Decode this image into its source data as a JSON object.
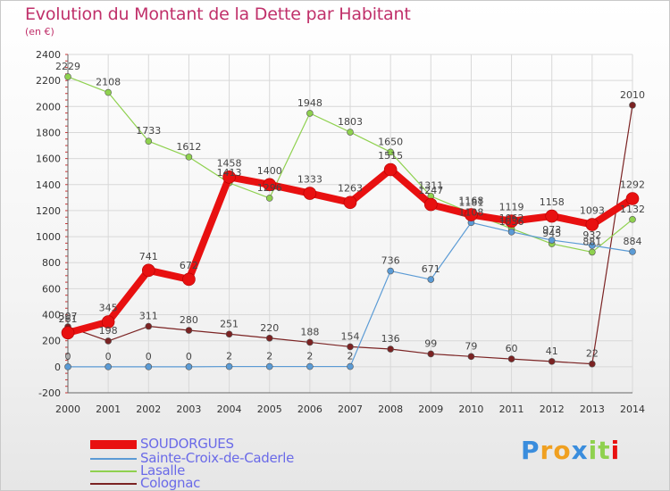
{
  "header": {
    "title": "Evolution du Montant de la Dette par Habitant",
    "unit": "(en €)"
  },
  "colors": {
    "title": "#c0306a",
    "legend_text": "#6a6ae8",
    "grid": "#d8d8d8"
  },
  "chart_data": {
    "type": "line",
    "title": "Evolution du Montant de la Dette par Habitant",
    "subtitle": "(en €)",
    "x": [
      2000,
      2001,
      2002,
      2003,
      2004,
      2005,
      2006,
      2007,
      2008,
      2009,
      2010,
      2011,
      2012,
      2013,
      2014
    ],
    "ylim": [
      -200,
      2400
    ],
    "yticks": [
      -200,
      0,
      200,
      400,
      600,
      800,
      1000,
      1200,
      1400,
      1600,
      1800,
      2000,
      2200,
      2400
    ],
    "grid": true,
    "legend_position": "bottom",
    "series": [
      {
        "name": "SOUDORGUES",
        "color": "#e81010",
        "line_width": 8,
        "values": [
          261,
          345,
          741,
          672,
          1458,
          1400,
          1333,
          1263,
          1515,
          1247,
          1168,
          1119,
          1158,
          1093,
          1292
        ],
        "labels": [
          "261",
          "345",
          "741",
          "672",
          "1458",
          "1400",
          "1333",
          "1263",
          "1515",
          "1247",
          "1168",
          "1119",
          "1158",
          "1093",
          "1292"
        ]
      },
      {
        "name": "Sainte-Croix-de-Caderle",
        "color": "#5b9bd5",
        "line_width": 1.2,
        "values": [
          0,
          0,
          0,
          0,
          2,
          2,
          2,
          2,
          736,
          671,
          1108,
          1036,
          973,
          932,
          884
        ],
        "labels": [
          "0",
          "0",
          "0",
          "0",
          "2",
          "2",
          "2",
          "2",
          "736",
          "671",
          "1108",
          "1036",
          "973",
          "932",
          "884"
        ]
      },
      {
        "name": "Lasalle",
        "color": "#8fd14f",
        "line_width": 1.2,
        "values": [
          2229,
          2108,
          1733,
          1612,
          1413,
          1296,
          1948,
          1803,
          1650,
          1311,
          1181,
          1062,
          945,
          881,
          1132
        ],
        "labels": [
          "2229",
          "2108",
          "1733",
          "1612",
          "1413",
          "1296",
          "1948",
          "1803",
          "1650",
          "1311",
          "1181",
          "1062",
          "945",
          "881",
          "1132"
        ]
      },
      {
        "name": "Colognac",
        "color": "#7b2323",
        "line_width": 1.2,
        "values": [
          307,
          198,
          311,
          280,
          251,
          220,
          188,
          154,
          136,
          99,
          79,
          60,
          41,
          22,
          2010
        ],
        "labels": [
          "307",
          "198",
          "311",
          "280",
          "251",
          "220",
          "188",
          "154",
          "136",
          "99",
          "79",
          "60",
          "41",
          "22",
          "2010"
        ]
      }
    ]
  },
  "legend": {
    "items": [
      {
        "label": "SOUDORGUES",
        "color": "#e81010"
      },
      {
        "label": "Sainte-Croix-de-Caderle",
        "color": "#5b9bd5"
      },
      {
        "label": "Lasalle",
        "color": "#8fd14f"
      },
      {
        "label": "Colognac",
        "color": "#7b2323"
      }
    ]
  },
  "logo": {
    "letters": [
      "P",
      "r",
      "o",
      "x",
      "i",
      "t",
      "i"
    ],
    "colors": [
      "#3a8ddd",
      "#f0a020",
      "#f0a020",
      "#3a8ddd",
      "#8fd14f",
      "#8fd14f",
      "#e81010"
    ]
  }
}
